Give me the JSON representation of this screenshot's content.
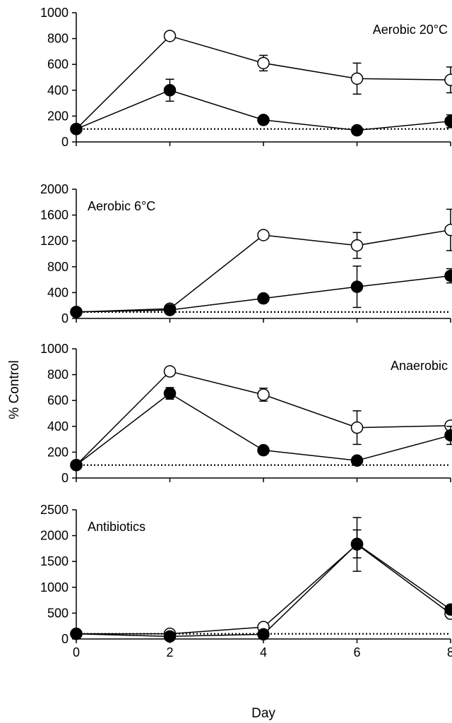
{
  "figure": {
    "ylabel": "% Control",
    "xlabel": "Day"
  },
  "chart_data": [
    {
      "type": "line",
      "title": "Aerobic 20°C",
      "ylim": [
        0,
        1000
      ],
      "yticks": [
        0,
        200,
        400,
        600,
        800,
        1000
      ],
      "xlim": [
        0,
        8
      ],
      "xticks": [
        0,
        2,
        4,
        6,
        8
      ],
      "show_xtick_labels": false,
      "label_position": "top-right",
      "reference_line": 100,
      "series": [
        {
          "marker": "open-circle",
          "x": [
            0,
            2,
            4,
            6,
            8
          ],
          "y": [
            100,
            820,
            610,
            490,
            480
          ],
          "err": [
            0,
            20,
            60,
            120,
            100
          ]
        },
        {
          "marker": "filled-circle",
          "x": [
            0,
            2,
            4,
            6,
            8
          ],
          "y": [
            100,
            400,
            170,
            90,
            160
          ],
          "err": [
            0,
            85,
            0,
            0,
            50
          ]
        }
      ]
    },
    {
      "type": "line",
      "title": "Aerobic 6°C",
      "ylim": [
        0,
        2000
      ],
      "yticks": [
        0,
        400,
        800,
        1200,
        1600,
        2000
      ],
      "xlim": [
        0,
        8
      ],
      "xticks": [
        0,
        2,
        4,
        6,
        8
      ],
      "show_xtick_labels": false,
      "label_position": "top-left",
      "reference_line": 100,
      "series": [
        {
          "marker": "open-circle",
          "x": [
            0,
            2,
            4,
            6,
            8
          ],
          "y": [
            100,
            150,
            1290,
            1130,
            1370
          ],
          "err": [
            0,
            0,
            0,
            200,
            320
          ]
        },
        {
          "marker": "filled-circle",
          "x": [
            0,
            2,
            4,
            6,
            8
          ],
          "y": [
            100,
            130,
            310,
            490,
            660
          ],
          "err": [
            0,
            0,
            0,
            320,
            110
          ]
        }
      ]
    },
    {
      "type": "line",
      "title": "Anaerobic",
      "ylim": [
        0,
        1000
      ],
      "yticks": [
        0,
        200,
        400,
        600,
        800,
        1000
      ],
      "xlim": [
        0,
        8
      ],
      "xticks": [
        0,
        2,
        4,
        6,
        8
      ],
      "show_xtick_labels": false,
      "label_position": "top-right",
      "reference_line": 100,
      "series": [
        {
          "marker": "open-circle",
          "x": [
            0,
            2,
            4,
            6,
            8
          ],
          "y": [
            100,
            825,
            645,
            390,
            405
          ],
          "err": [
            0,
            0,
            50,
            130,
            0
          ]
        },
        {
          "marker": "filled-circle",
          "x": [
            0,
            2,
            4,
            6,
            8
          ],
          "y": [
            100,
            655,
            215,
            135,
            330
          ],
          "err": [
            0,
            45,
            0,
            25,
            70
          ]
        }
      ]
    },
    {
      "type": "line",
      "title": "Antibiotics",
      "ylim": [
        0,
        2500
      ],
      "yticks": [
        0,
        500,
        1000,
        1500,
        2000,
        2500
      ],
      "xlim": [
        0,
        8
      ],
      "xticks": [
        0,
        2,
        4,
        6,
        8
      ],
      "show_xtick_labels": true,
      "label_position": "top-left",
      "reference_line": 100,
      "series": [
        {
          "marker": "open-circle",
          "x": [
            0,
            2,
            4,
            6,
            8
          ],
          "y": [
            100,
            100,
            230,
            1830,
            490
          ],
          "err": [
            0,
            0,
            0,
            520,
            0
          ]
        },
        {
          "marker": "filled-circle",
          "x": [
            0,
            2,
            4,
            6,
            8
          ],
          "y": [
            100,
            50,
            90,
            1840,
            570
          ],
          "err": [
            0,
            0,
            0,
            270,
            0
          ]
        }
      ]
    }
  ]
}
